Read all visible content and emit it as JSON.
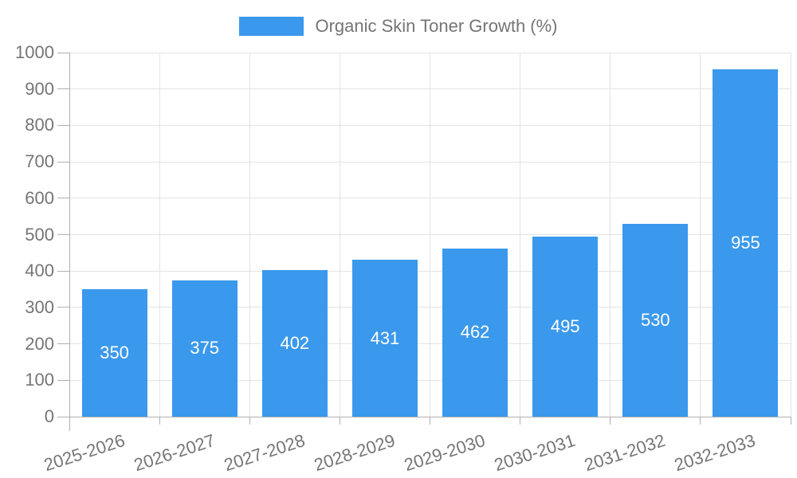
{
  "chart_data": {
    "type": "bar",
    "title": "Organic Skin Toner Growth (%)",
    "legend_position": "top",
    "categories": [
      "2025-2026",
      "2026-2027",
      "2027-2028",
      "2028-2029",
      "2029-2030",
      "2030-2031",
      "2031-2032",
      "2032-2033"
    ],
    "values": [
      350,
      375,
      402,
      431,
      462,
      495,
      530,
      955
    ],
    "xlabel": "",
    "ylabel": "",
    "ylim": [
      0,
      1000
    ],
    "ytick_step": 100,
    "grid": true,
    "colors": {
      "bar": "#3a99ec",
      "value_label": "#ffffff",
      "axis_text": "#757575",
      "grid_line": "#e3e3e3",
      "axis_line": "#b0b0b0",
      "background": "#ffffff"
    }
  }
}
